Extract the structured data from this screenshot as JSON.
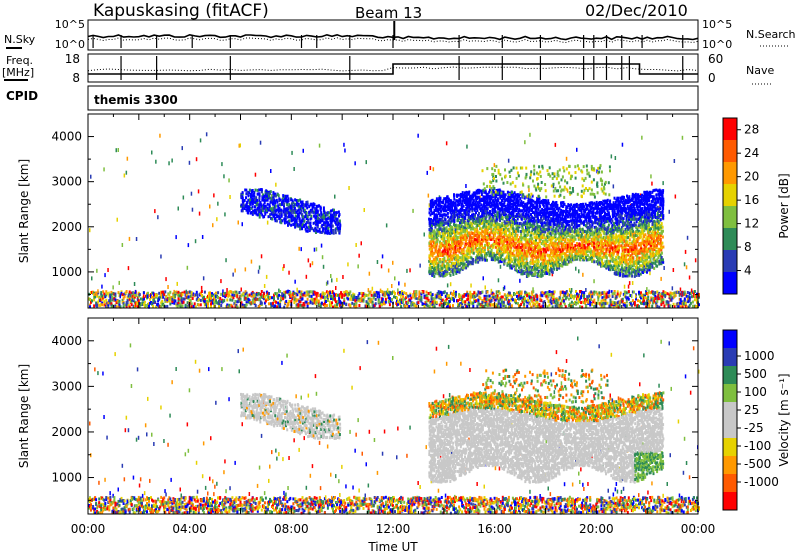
{
  "header": {
    "station": "Kapuskasing (fitACF)",
    "beam": "Beam 13",
    "date": "02/Dec/2010"
  },
  "side_labels": {
    "nsky": "N.Sky",
    "nsearch": "N.Search",
    "freq_line1": "Freq.",
    "freq_line2": "[MHz]",
    "nave": "Nave",
    "cpid": "CPID",
    "cpid_value": "themis 3300"
  },
  "small_axes": {
    "noise_left_ticks": [
      "10^5",
      "10^0"
    ],
    "noise_right_ticks": [
      "10^5",
      "10^0"
    ],
    "freq_left_ticks": [
      "18",
      "8"
    ],
    "nave_right_ticks": [
      "60",
      "0"
    ]
  },
  "colors": {
    "power_scale": [
      "#0000ff",
      "#2a3cb4",
      "#2e8b57",
      "#7fbf3f",
      "#e6d200",
      "#ff9900",
      "#ff5a00",
      "#ff0000"
    ],
    "velocity_scale": [
      "#ff0000",
      "#ff5a00",
      "#ff9900",
      "#e6d200",
      "#c8c8c8",
      "#c8c8c8",
      "#7fbf3f",
      "#2e8b57",
      "#2a3cb4",
      "#0000ff"
    ],
    "ground_scatter": "#c8c8c8"
  },
  "chart_data": [
    {
      "type": "heatmap",
      "panel": "power",
      "title": "",
      "xlabel": "Time UT",
      "ylabel": "Slant Range [km]",
      "xlim": [
        0,
        24
      ],
      "ylim": [
        200,
        4500
      ],
      "x_tick_labels": [
        "00:00",
        "04:00",
        "08:00",
        "12:00",
        "16:00",
        "20:00",
        "00:00"
      ],
      "y_tick_labels": [
        "1000",
        "2000",
        "3000",
        "4000"
      ],
      "colorbar_label": "Power [dB]",
      "colorbar_ticks": [
        "4",
        "8",
        "12",
        "16",
        "20",
        "24",
        "28"
      ],
      "colorbar_range": [
        0,
        30
      ]
    },
    {
      "type": "heatmap",
      "panel": "velocity",
      "title": "",
      "xlabel": "Time UT",
      "ylabel": "Slant Range [km]",
      "xlim": [
        0,
        24
      ],
      "ylim": [
        200,
        4500
      ],
      "x_tick_labels": [
        "00:00",
        "04:00",
        "08:00",
        "12:00",
        "16:00",
        "20:00",
        "00:00"
      ],
      "y_tick_labels": [
        "1000",
        "2000",
        "3000",
        "4000"
      ],
      "colorbar_label": "Velocity [m s⁻¹]",
      "colorbar_ticks": [
        "1000",
        "500",
        "100",
        "25",
        "-25",
        "-100",
        "-500",
        "-1000"
      ],
      "colorbar_range": [
        -1000,
        1000
      ]
    }
  ]
}
